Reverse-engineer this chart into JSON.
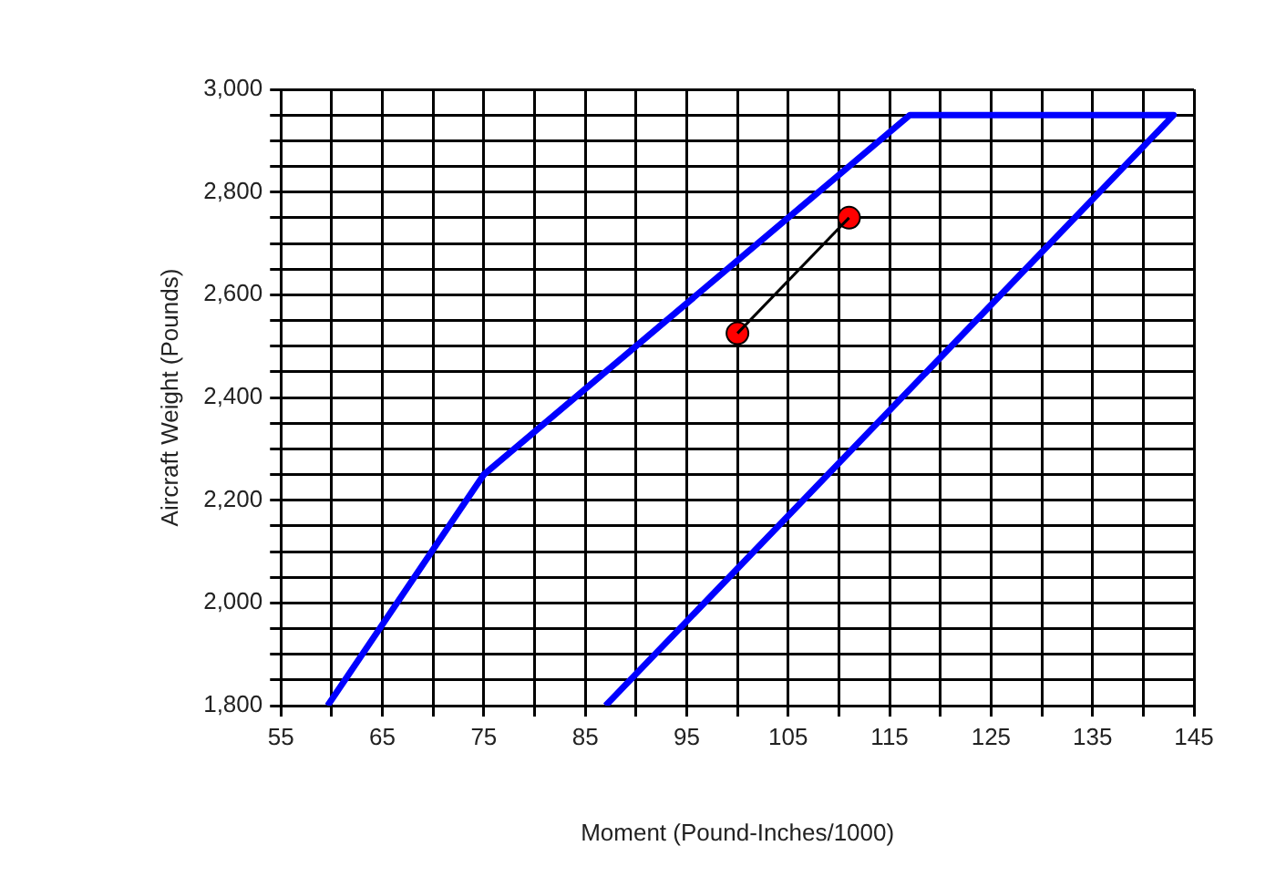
{
  "chart_data": {
    "type": "line",
    "xlabel": "Moment (Pound-Inches/1000)",
    "ylabel": "Aircraft Weight (Pounds)",
    "xlim": [
      55,
      145
    ],
    "ylim": [
      1800,
      3000
    ],
    "xticks": [
      55,
      {
        "value": 60,
        "label": null
      },
      65,
      {
        "value": 70,
        "label": null
      },
      75,
      {
        "value": 80,
        "label": null
      },
      85,
      {
        "value": 90,
        "label": null
      },
      95,
      {
        "value": 100,
        "label": null
      },
      105,
      {
        "value": 110,
        "label": null
      },
      115,
      {
        "value": 120,
        "label": null
      },
      125,
      {
        "value": 130,
        "label": null
      },
      135,
      {
        "value": 140,
        "label": null
      },
      145
    ],
    "yticks": [
      {
        "value": 1800,
        "label": "1,800"
      },
      {
        "value": 1850,
        "label": null
      },
      {
        "value": 1900,
        "label": null
      },
      {
        "value": 1950,
        "label": null
      },
      {
        "value": 2000,
        "label": "2,000"
      },
      {
        "value": 2050,
        "label": null
      },
      {
        "value": 2100,
        "label": null
      },
      {
        "value": 2150,
        "label": null
      },
      {
        "value": 2200,
        "label": "2,200"
      },
      {
        "value": 2250,
        "label": null
      },
      {
        "value": 2300,
        "label": null
      },
      {
        "value": 2350,
        "label": null
      },
      {
        "value": 2400,
        "label": "2,400"
      },
      {
        "value": 2450,
        "label": null
      },
      {
        "value": 2500,
        "label": null
      },
      {
        "value": 2550,
        "label": null
      },
      {
        "value": 2600,
        "label": "2,600"
      },
      {
        "value": 2650,
        "label": null
      },
      {
        "value": 2700,
        "label": null
      },
      {
        "value": 2750,
        "label": null
      },
      {
        "value": 2800,
        "label": "2,800"
      },
      {
        "value": 2850,
        "label": null
      },
      {
        "value": 2900,
        "label": null
      },
      {
        "value": 2950,
        "label": null
      },
      {
        "value": 3000,
        "label": "3,000"
      }
    ],
    "grid": true,
    "series": [
      {
        "color": "#0000ff",
        "marker": "none",
        "line_style": "solid",
        "x": [
          59.6,
          75,
          117,
          143,
          87
        ],
        "values": [
          1800,
          2250,
          2950,
          2950,
          1800
        ]
      },
      {
        "color": "#000000",
        "marker": "none",
        "line_style": "solid",
        "x": [
          100,
          111
        ],
        "values": [
          2525,
          2750
        ]
      },
      {
        "type": "scatter",
        "color": "#ff0000",
        "marker": "circle",
        "x": [
          100,
          111
        ],
        "values": [
          2525,
          2750
        ]
      }
    ]
  }
}
